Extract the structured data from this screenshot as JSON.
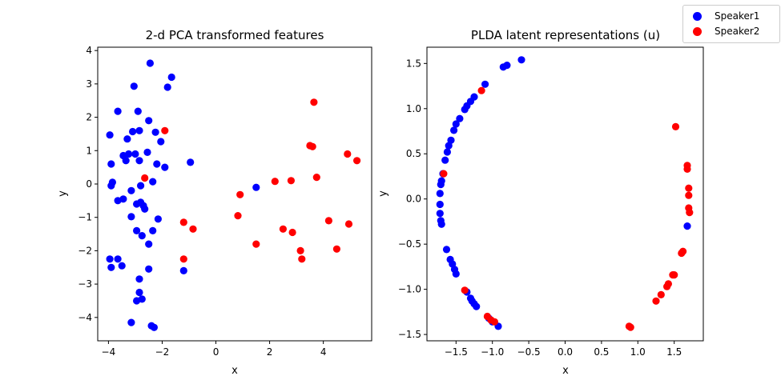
{
  "legend": {
    "entries": [
      {
        "name": "Speaker1",
        "color": "#0000ff"
      },
      {
        "name": "Speaker2",
        "color": "#ff0000"
      }
    ]
  },
  "chart_data": [
    {
      "type": "scatter",
      "title": "2-d PCA transformed features",
      "xlabel": "x",
      "ylabel": "y",
      "xlim": [
        -4.4,
        5.8
      ],
      "ylim": [
        -4.7,
        4.1
      ],
      "xticks": [
        -4,
        -2,
        0,
        2,
        4
      ],
      "yticks": [
        -4,
        -3,
        -2,
        -1,
        0,
        1,
        2,
        3,
        4
      ],
      "xtick_labels": [
        "−4",
        "−2",
        "0",
        "2",
        "4"
      ],
      "ytick_labels": [
        "−4",
        "−3",
        "−2",
        "−1",
        "0",
        "1",
        "2",
        "3",
        "4"
      ],
      "grid": false,
      "series": [
        {
          "name": "Speaker1",
          "color": "#0000ff",
          "points": [
            [
              -2.45,
              3.62
            ],
            [
              -3.05,
              2.93
            ],
            [
              -1.65,
              3.2
            ],
            [
              -1.8,
              2.9
            ],
            [
              -3.65,
              2.18
            ],
            [
              -2.9,
              2.18
            ],
            [
              -2.5,
              1.9
            ],
            [
              -3.95,
              1.47
            ],
            [
              -3.1,
              1.57
            ],
            [
              -3.3,
              1.35
            ],
            [
              -2.85,
              1.6
            ],
            [
              -2.25,
              1.55
            ],
            [
              -2.05,
              1.27
            ],
            [
              -3.45,
              0.85
            ],
            [
              -3.25,
              0.9
            ],
            [
              -3.0,
              0.9
            ],
            [
              -2.55,
              0.95
            ],
            [
              -3.35,
              0.7
            ],
            [
              -2.85,
              0.7
            ],
            [
              -3.9,
              0.6
            ],
            [
              -2.2,
              0.6
            ],
            [
              -1.9,
              0.5
            ],
            [
              -0.95,
              0.65
            ],
            [
              -3.85,
              0.05
            ],
            [
              -3.9,
              -0.05
            ],
            [
              -2.35,
              0.07
            ],
            [
              -3.15,
              -0.2
            ],
            [
              -2.8,
              -0.05
            ],
            [
              -3.65,
              -0.5
            ],
            [
              -3.45,
              -0.45
            ],
            [
              -2.95,
              -0.6
            ],
            [
              -2.8,
              -0.55
            ],
            [
              -2.7,
              -0.65
            ],
            [
              -2.65,
              -0.75
            ],
            [
              -3.15,
              -0.98
            ],
            [
              -2.15,
              -1.05
            ],
            [
              -2.95,
              -1.4
            ],
            [
              -2.75,
              -1.55
            ],
            [
              -2.35,
              -1.4
            ],
            [
              -2.5,
              -1.8
            ],
            [
              -3.95,
              -2.25
            ],
            [
              -3.65,
              -2.25
            ],
            [
              -3.9,
              -2.5
            ],
            [
              -3.5,
              -2.45
            ],
            [
              -2.5,
              -2.55
            ],
            [
              -2.85,
              -2.85
            ],
            [
              -2.85,
              -3.25
            ],
            [
              -2.95,
              -3.5
            ],
            [
              -2.75,
              -3.45
            ],
            [
              -3.15,
              -4.15
            ],
            [
              -2.4,
              -4.25
            ],
            [
              -2.3,
              -4.3
            ],
            [
              -1.2,
              -2.6
            ],
            [
              1.5,
              -0.1
            ]
          ]
        },
        {
          "name": "Speaker2",
          "color": "#ff0000",
          "points": [
            [
              -1.9,
              1.6
            ],
            [
              -2.65,
              0.18
            ],
            [
              -1.2,
              -1.15
            ],
            [
              -0.85,
              -1.35
            ],
            [
              -1.2,
              -2.25
            ],
            [
              0.9,
              -0.32
            ],
            [
              0.82,
              -0.95
            ],
            [
              1.5,
              -1.8
            ],
            [
              2.2,
              0.08
            ],
            [
              2.8,
              0.1
            ],
            [
              2.5,
              -1.35
            ],
            [
              2.85,
              -1.45
            ],
            [
              3.15,
              -2.0
            ],
            [
              3.2,
              -2.25
            ],
            [
              3.5,
              1.15
            ],
            [
              3.6,
              1.12
            ],
            [
              3.65,
              2.45
            ],
            [
              3.75,
              0.2
            ],
            [
              4.2,
              -1.1
            ],
            [
              4.5,
              -1.95
            ],
            [
              4.9,
              0.9
            ],
            [
              5.25,
              0.7
            ],
            [
              4.95,
              -1.2
            ]
          ]
        }
      ]
    },
    {
      "type": "scatter",
      "title": "PLDA latent representations (u)",
      "xlabel": "x",
      "ylabel": "y",
      "xlim": [
        -1.9,
        1.9
      ],
      "ylim": [
        -1.57,
        1.68
      ],
      "xticks": [
        -1.5,
        -1.0,
        -0.5,
        0.0,
        0.5,
        1.0,
        1.5
      ],
      "yticks": [
        -1.5,
        -1.0,
        -0.5,
        0.0,
        0.5,
        1.0,
        1.5
      ],
      "xtick_labels": [
        "−1.5",
        "−1.0",
        "−0.5",
        "0.0",
        "0.5",
        "1.0",
        "1.5"
      ],
      "ytick_labels": [
        "−1.5",
        "−1.0",
        "−0.5",
        "0.0",
        "0.5",
        "1.0",
        "1.5"
      ],
      "grid": false,
      "series": [
        {
          "name": "Speaker1",
          "color": "#0000ff",
          "points": [
            [
              -0.6,
              1.54
            ],
            [
              -0.8,
              1.48
            ],
            [
              -0.85,
              1.46
            ],
            [
              -1.1,
              1.27
            ],
            [
              -1.25,
              1.13
            ],
            [
              -1.3,
              1.08
            ],
            [
              -1.35,
              1.03
            ],
            [
              -1.38,
              0.99
            ],
            [
              -1.45,
              0.89
            ],
            [
              -1.5,
              0.83
            ],
            [
              -1.53,
              0.76
            ],
            [
              -1.57,
              0.65
            ],
            [
              -1.6,
              0.59
            ],
            [
              -1.62,
              0.52
            ],
            [
              -1.65,
              0.43
            ],
            [
              -1.68,
              0.28
            ],
            [
              -1.7,
              0.2
            ],
            [
              -1.71,
              0.16
            ],
            [
              -1.72,
              0.06
            ],
            [
              -1.72,
              -0.06
            ],
            [
              -1.72,
              -0.16
            ],
            [
              -1.71,
              -0.24
            ],
            [
              -1.7,
              -0.28
            ],
            [
              -1.63,
              -0.56
            ],
            [
              -1.58,
              -0.67
            ],
            [
              -1.55,
              -0.72
            ],
            [
              -1.52,
              -0.78
            ],
            [
              -1.5,
              -0.83
            ],
            [
              -1.35,
              -1.03
            ],
            [
              -1.3,
              -1.1
            ],
            [
              -1.28,
              -1.13
            ],
            [
              -1.25,
              -1.16
            ],
            [
              -1.22,
              -1.19
            ],
            [
              -1.05,
              -1.32
            ],
            [
              -1.0,
              -1.36
            ],
            [
              -0.92,
              -1.41
            ],
            [
              1.68,
              -0.3
            ]
          ]
        },
        {
          "name": "Speaker2",
          "color": "#ff0000",
          "points": [
            [
              -1.15,
              1.2
            ],
            [
              -1.67,
              0.28
            ],
            [
              -1.38,
              -1.01
            ],
            [
              -1.07,
              -1.3
            ],
            [
              -1.02,
              -1.34
            ],
            [
              -0.97,
              -1.36
            ],
            [
              0.88,
              -1.41
            ],
            [
              0.9,
              -1.42
            ],
            [
              1.25,
              -1.13
            ],
            [
              1.32,
              -1.06
            ],
            [
              1.4,
              -0.97
            ],
            [
              1.42,
              -0.94
            ],
            [
              1.48,
              -0.84
            ],
            [
              1.5,
              -0.84
            ],
            [
              1.6,
              -0.6
            ],
            [
              1.62,
              -0.58
            ],
            [
              1.52,
              0.8
            ],
            [
              1.68,
              0.37
            ],
            [
              1.68,
              0.33
            ],
            [
              1.7,
              0.12
            ],
            [
              1.7,
              0.04
            ],
            [
              1.7,
              -0.1
            ],
            [
              1.71,
              -0.15
            ]
          ]
        }
      ]
    }
  ]
}
